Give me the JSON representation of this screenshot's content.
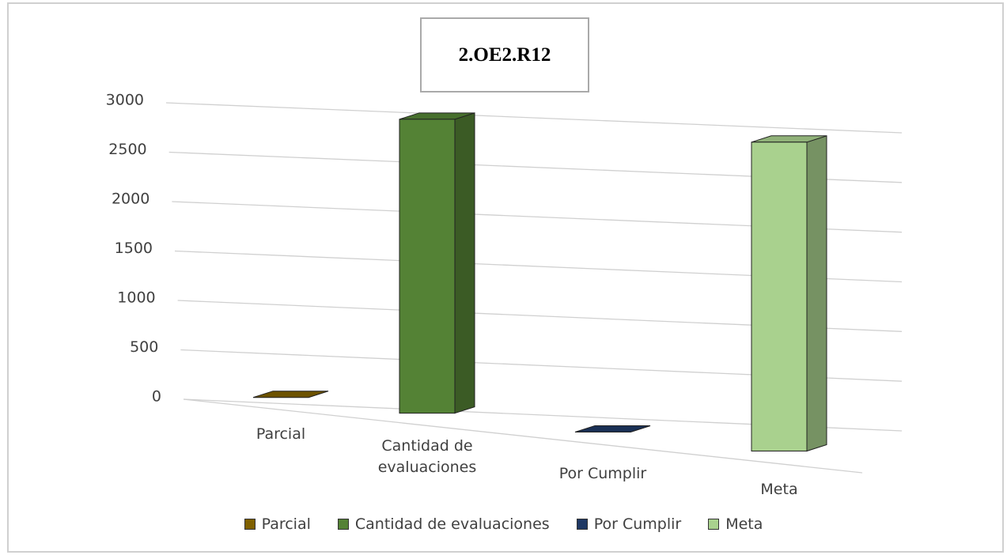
{
  "chart_data": {
    "type": "bar3d",
    "title": "2.OE2.R12",
    "categories": [
      "Parcial",
      "Cantidad de evaluaciones",
      "Por Cumplir",
      "Meta"
    ],
    "series": [
      {
        "name": "Parcial",
        "color": "#7f6000",
        "values": [
          0,
          null,
          null,
          null
        ]
      },
      {
        "name": "Cantidad de evaluaciones",
        "color": "#548235",
        "values": [
          null,
          2900,
          null,
          null
        ]
      },
      {
        "name": "Por Cumplir",
        "color": "#1f3864",
        "values": [
          null,
          null,
          0,
          null
        ]
      },
      {
        "name": "Meta",
        "color": "#a9d18e",
        "values": [
          null,
          null,
          null,
          2850
        ]
      }
    ],
    "ylim": [
      0,
      3000
    ],
    "yticks": [
      0,
      500,
      1000,
      1500,
      2000,
      2500,
      3000
    ],
    "grid": true,
    "legend": "bottom"
  }
}
